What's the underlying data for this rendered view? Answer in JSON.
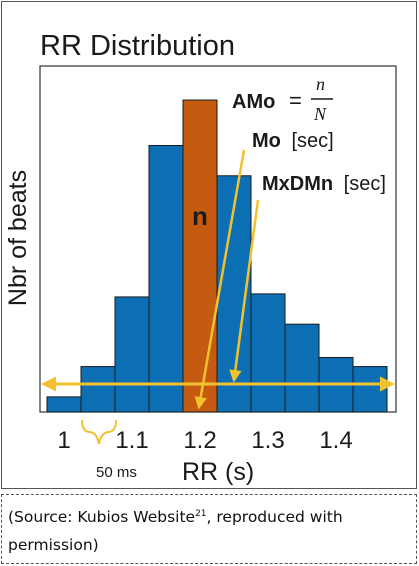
{
  "chart_data": {
    "type": "bar",
    "title": "RR Distribution",
    "xlabel": "RR (s)",
    "ylabel": "Nbr of beats",
    "x_ticks": [
      "1",
      "1.1",
      "1.2",
      "1.3",
      "1.4"
    ],
    "bin_width_label": "50 ms",
    "bin_start": 0.975,
    "bin_width": 0.05,
    "ylim": [
      0,
      10.5
    ],
    "values": [
      0.5,
      1.5,
      3.8,
      8.8,
      10.3,
      7.8,
      3.9,
      2.9,
      1.8,
      1.5
    ],
    "highlight_index": 4,
    "highlight_label": "n",
    "annotations": {
      "amo_label": "AMo",
      "amo_equals": "=",
      "amo_numerator": "n",
      "amo_denominator": "N",
      "mo_label": "Mo",
      "mo_unit": "[sec]",
      "mxdmn_label": "MxDMn",
      "mxdmn_unit": "[sec]"
    }
  },
  "colors": {
    "bar": "#0c6fb4",
    "highlight_bar": "#c55a11",
    "arrow": "#f2c12e",
    "text": "#1a1a1a"
  },
  "caption": {
    "prefix": "(Source: Kubios Website",
    "sup": "21",
    "suffix": ", reproduced with permission)"
  }
}
